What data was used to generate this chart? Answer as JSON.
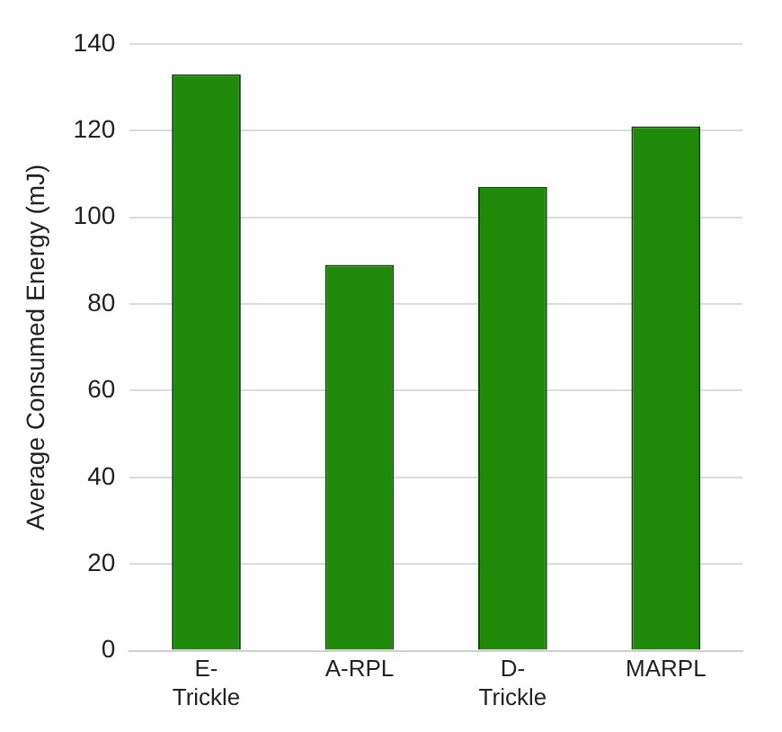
{
  "chart_data": {
    "type": "bar",
    "ylabel": "Average Consumed Energy (mJ)",
    "categories": [
      "E-\nTrickle",
      "A-RPL",
      "D-\nTrickle",
      "MARPL"
    ],
    "values": [
      133,
      89,
      107,
      121
    ],
    "color": "#1f8a0a",
    "ylim": [
      0,
      140
    ],
    "yticks": [
      0,
      20,
      40,
      60,
      80,
      100,
      120,
      140
    ],
    "grid": "y"
  }
}
